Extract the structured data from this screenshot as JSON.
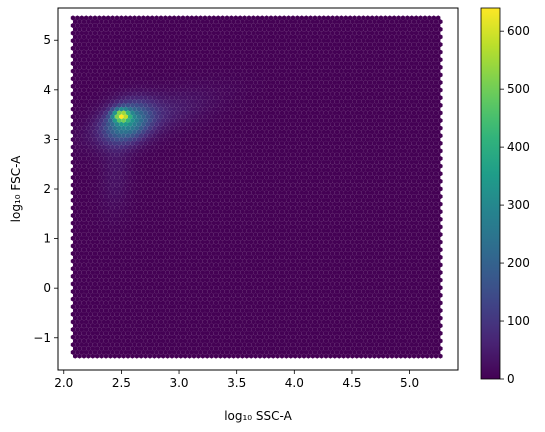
{
  "chart_data": {
    "type": "heatmap",
    "subtype": "hexbin",
    "title": "",
    "xlabel": "log₁₀ SSC-A",
    "ylabel": "log₁₀ FSC-A",
    "xlim": [
      1.95,
      5.42
    ],
    "ylim": [
      -1.65,
      5.65
    ],
    "x_extent": [
      2.08,
      5.27
    ],
    "y_extent": [
      -1.38,
      5.45
    ],
    "xticks": [
      "2.0",
      "2.5",
      "3.0",
      "3.5",
      "4.0",
      "4.5",
      "5.0"
    ],
    "xtick_values": [
      2.0,
      2.5,
      3.0,
      3.5,
      4.0,
      4.5,
      5.0
    ],
    "yticks": [
      "−1",
      "0",
      "1",
      "2",
      "3",
      "4",
      "5"
    ],
    "ytick_values": [
      -1,
      0,
      1,
      2,
      3,
      4,
      5
    ],
    "colormap": "viridis",
    "colorbar": {
      "min": 0,
      "max": 640,
      "ticks": [
        "0",
        "100",
        "200",
        "300",
        "400",
        "500",
        "600"
      ],
      "tick_values": [
        0,
        100,
        200,
        300,
        400,
        500,
        600
      ],
      "placement": "right"
    },
    "peak": {
      "x": 2.5,
      "y": 3.48,
      "count": 640
    },
    "density_components": [
      {
        "x": 2.5,
        "y": 3.48,
        "sx": 0.05,
        "sy": 0.09,
        "rho": 0.0,
        "count": 420
      },
      {
        "x": 2.55,
        "y": 3.35,
        "sx": 0.14,
        "sy": 0.28,
        "rho": 0.25,
        "count": 250
      },
      {
        "x": 2.75,
        "y": 3.45,
        "sx": 0.35,
        "sy": 0.35,
        "rho": 0.65,
        "count": 55
      },
      {
        "x": 2.45,
        "y": 2.3,
        "sx": 0.09,
        "sy": 0.55,
        "rho": 0.1,
        "count": 30
      }
    ],
    "grid": false,
    "background_color": "#440154"
  }
}
